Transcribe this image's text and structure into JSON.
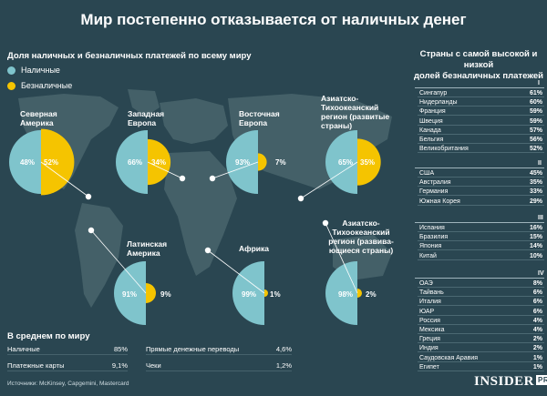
{
  "title": "Мир постепенно отказывается от наличных денег",
  "left_subtitle": "Доля наличных и безналичных платежей по всему миру",
  "legend": [
    {
      "label": "Наличные",
      "color": "#7fc4cc"
    },
    {
      "label": "Безналичные",
      "color": "#f5c400"
    }
  ],
  "colors": {
    "cash": "#7fc4cc",
    "cashless": "#f5c400",
    "land": "#446068",
    "background": "#2a4651"
  },
  "chart_data": [
    {
      "type": "pie",
      "title": "Доля наличных и безналичных платежей по всему миру",
      "series": [
        {
          "name": "Северная Америка",
          "values": [
            48,
            52
          ]
        },
        {
          "name": "Западная Европа",
          "values": [
            66,
            34
          ]
        },
        {
          "name": "Восточная Европа",
          "values": [
            93,
            7
          ]
        },
        {
          "name": "Азиатско-Тихоокеанский регион (развитые страны)",
          "values": [
            65,
            35
          ]
        },
        {
          "name": "Латинская Америка",
          "values": [
            91,
            9
          ]
        },
        {
          "name": "Африка",
          "values": [
            99,
            1
          ]
        },
        {
          "name": "Азиатско-Тихоокеанский регион (развивающиеся страны)",
          "values": [
            98,
            2
          ]
        }
      ],
      "categories": [
        "Наличные",
        "Безналичные"
      ]
    },
    {
      "type": "table",
      "title": "Страны с самой высокой и низкой долей безналичных платежей",
      "groups": [
        {
          "label": "I",
          "rows": [
            {
              "country": "Сингапур",
              "value": "61%"
            },
            {
              "country": "Нидерланды",
              "value": "60%"
            },
            {
              "country": "Франция",
              "value": "59%"
            },
            {
              "country": "Швеция",
              "value": "59%"
            },
            {
              "country": "Канада",
              "value": "57%"
            },
            {
              "country": "Бельгия",
              "value": "56%"
            },
            {
              "country": "Великобритания",
              "value": "52%"
            }
          ]
        },
        {
          "label": "II",
          "rows": [
            {
              "country": "США",
              "value": "45%"
            },
            {
              "country": "Австралия",
              "value": "35%"
            },
            {
              "country": "Германия",
              "value": "33%"
            },
            {
              "country": "Южная Корея",
              "value": "29%"
            }
          ]
        },
        {
          "label": "III",
          "rows": [
            {
              "country": "Испания",
              "value": "16%"
            },
            {
              "country": "Бразилия",
              "value": "15%"
            },
            {
              "country": "Япония",
              "value": "14%"
            },
            {
              "country": "Китай",
              "value": "10%"
            }
          ]
        },
        {
          "label": "IV",
          "rows": [
            {
              "country": "ОАЭ",
              "value": "8%"
            },
            {
              "country": "Тайвань",
              "value": "6%"
            },
            {
              "country": "Италия",
              "value": "6%"
            },
            {
              "country": "ЮАР",
              "value": "6%"
            },
            {
              "country": "Россия",
              "value": "4%"
            },
            {
              "country": "Мексика",
              "value": "4%"
            },
            {
              "country": "Греция",
              "value": "2%"
            },
            {
              "country": "Индия",
              "value": "2%"
            },
            {
              "country": "Саудовская Аравия",
              "value": "1%"
            },
            {
              "country": "Египет",
              "value": "1%"
            }
          ]
        }
      ]
    }
  ],
  "regions": [
    {
      "label": "Северная Америка",
      "cash": "48%",
      "cashless": "52%"
    },
    {
      "label": "Западная Европа",
      "cash": "66%",
      "cashless": "34%"
    },
    {
      "label": "Восточная Европа",
      "cash": "93%",
      "cashless": "7%"
    },
    {
      "label": "Азиатско-Тихоокеанский регион (развитые страны)",
      "cash": "65%",
      "cashless": "35%"
    },
    {
      "label": "Латинская Америка",
      "cash": "91%",
      "cashless": "9%"
    },
    {
      "label": "Африка",
      "cash": "99%",
      "cashless": "1%"
    },
    {
      "label": "Азиатско-Тихоокеанский регион (развивающиеся страны)",
      "cash": "98%",
      "cashless": "2%"
    }
  ],
  "region_labels": {
    "na": [
      "Северная",
      "Америка"
    ],
    "we": [
      "Западная",
      "Европа"
    ],
    "ee": [
      "Восточная",
      "Европа"
    ],
    "apd": [
      "Азиатско-",
      "Тихоокеанский",
      "регион (развитые",
      "страны)"
    ],
    "la": [
      "Латинская",
      "Америка"
    ],
    "af": [
      "Африка"
    ],
    "ape": [
      "Азиатско-",
      "Тихоокеанский",
      "регион (развива-",
      "ющиеся страны)"
    ]
  },
  "average": {
    "title": "В среднем по миру",
    "rows": [
      {
        "label": "Наличные",
        "value": "85%"
      },
      {
        "label": "Платежные карты",
        "value": "9,1%"
      },
      {
        "label": "Прямые денежные переводы",
        "value": "4,6%"
      },
      {
        "label": "Чеки",
        "value": "1,2%"
      }
    ]
  },
  "right_title_lines": [
    "Страны с самой высокой и низкой",
    "долей безналичных платежей"
  ],
  "source": "Источники: McKinsey, Capgemini, Mastercard",
  "brand": {
    "name": "INSIDER",
    "tag": "PRO"
  }
}
